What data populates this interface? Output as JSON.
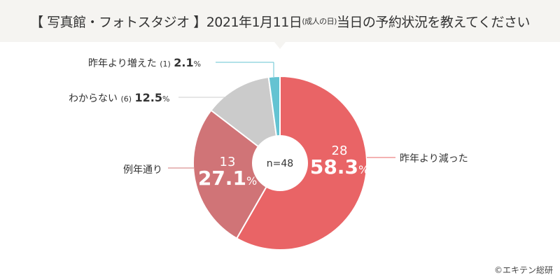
{
  "header": {
    "title_main": "【 写真館・フォトスタジオ 】2021年1月11日",
    "title_small": "(成人の日)",
    "title_end": "当日の予約状況を教えてください"
  },
  "chart_data": {
    "type": "pie",
    "title": "【 写真館・フォトスタジオ 】2021年1月11日(成人の日) 当日の予約状況を教えてください",
    "center_label": "n=48",
    "slices": [
      {
        "label": "昨年より減った",
        "count": "28",
        "value": 58.3,
        "pct": "58.3",
        "color": "#e96466"
      },
      {
        "label": "例年通り",
        "count": "13",
        "value": 27.1,
        "pct": "27.1",
        "color": "#d07477"
      },
      {
        "label": "わからない",
        "count": "(6)",
        "value": 12.5,
        "pct": "12.5",
        "color": "#cbcbcb"
      },
      {
        "label": "昨年より増えた",
        "count": "(1)",
        "value": 2.1,
        "pct": "2.1",
        "color": "#64c3d2"
      }
    ],
    "percent_sign": "%"
  },
  "credit": "©エキテン総研"
}
